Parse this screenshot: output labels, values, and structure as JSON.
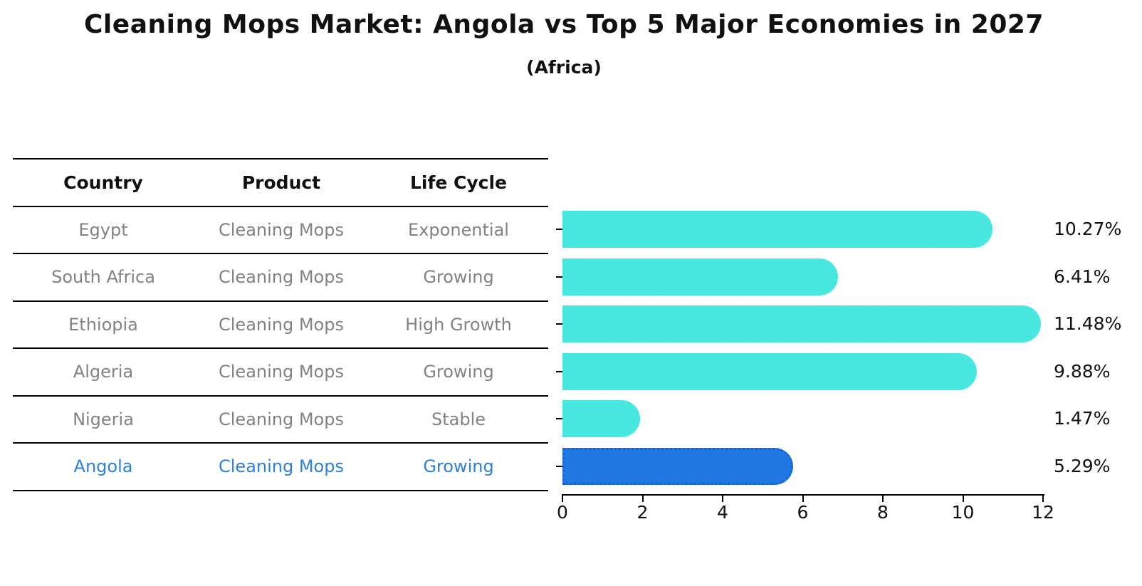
{
  "title": "Cleaning Mops Market: Angola vs Top 5 Major Economies in 2027",
  "subtitle": "(Africa)",
  "table": {
    "headers": [
      "Country",
      "Product",
      "Life Cycle"
    ],
    "rows": [
      {
        "country": "Egypt",
        "product": "Cleaning Mops",
        "life_cycle": "Exponential",
        "highlight": false
      },
      {
        "country": "South Africa",
        "product": "Cleaning Mops",
        "life_cycle": "Growing",
        "highlight": false
      },
      {
        "country": "Ethiopia",
        "product": "Cleaning Mops",
        "life_cycle": "High Growth",
        "highlight": false
      },
      {
        "country": "Algeria",
        "product": "Cleaning Mops",
        "life_cycle": "Growing",
        "highlight": false
      },
      {
        "country": "Nigeria",
        "product": "Cleaning Mops",
        "life_cycle": "Stable",
        "highlight": false
      },
      {
        "country": "Angola",
        "product": "Cleaning Mops",
        "life_cycle": "Growing",
        "highlight": true
      }
    ]
  },
  "chart_data": {
    "type": "bar",
    "orientation": "horizontal",
    "categories": [
      "Egypt",
      "South Africa",
      "Ethiopia",
      "Algeria",
      "Nigeria",
      "Angola"
    ],
    "values": [
      10.27,
      6.41,
      11.48,
      9.88,
      1.47,
      5.29
    ],
    "value_labels": [
      "10.27%",
      "6.41%",
      "11.48%",
      "9.88%",
      "1.47%",
      "5.29%"
    ],
    "x_ticks": [
      "0",
      "2",
      "4",
      "6",
      "8",
      "10",
      "12"
    ],
    "xlim": [
      0,
      12
    ],
    "grid": false,
    "legend": false,
    "highlight_index": 5,
    "bar_color": "#48E8E1",
    "highlight_bar_color": "#2078E3",
    "highlight_border_color": "#1A5FD0"
  },
  "colors": {
    "highlight_text": "#2E7FD6",
    "table_text": "#828282",
    "heading_text": "#111111"
  }
}
